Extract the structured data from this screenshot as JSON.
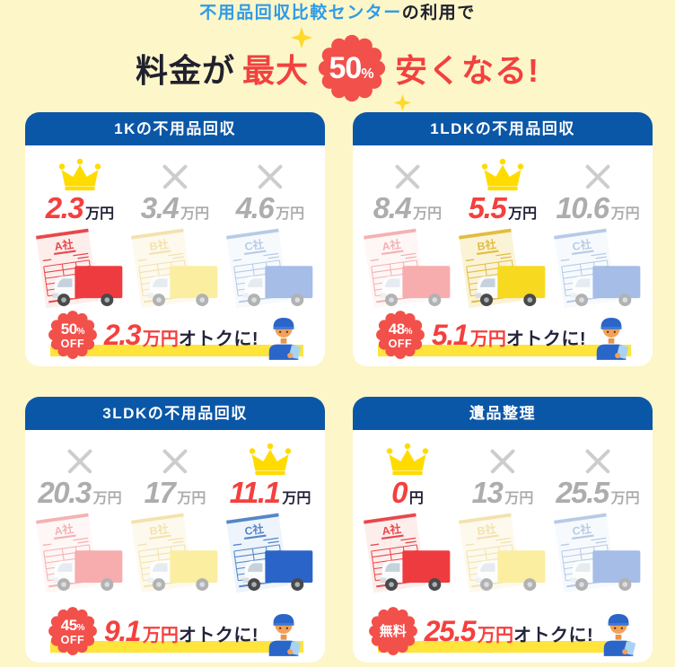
{
  "header": {
    "title_highlight": "不用品回収比較センター",
    "title_rest": "の利用で",
    "price_prefix": "料金が",
    "price_max": "最大",
    "badge_value": "50",
    "badge_unit": "%",
    "price_suffix": "安くなる!"
  },
  "colors": {
    "background": "#FCF6C9",
    "card_header_blue": "#0B57A7",
    "title_blue": "#2E9BE8",
    "dark_text": "#23233A",
    "accent_red": "#F2504B",
    "price_red": "#F4403E",
    "loser_gray": "#ADADAD",
    "highlight_yellow": "#FFE43B",
    "crown_yellow": "#FFDB00",
    "themes": {
      "red": {
        "ink": "#E8474B",
        "paper": "#FDEEEC",
        "truck": "#EE3B40"
      },
      "yellow": {
        "ink": "#E3BC3F",
        "paper": "#FBF3D6",
        "truck": "#F7D920"
      },
      "blue": {
        "ink": "#5586C6",
        "paper": "#EDF4FB",
        "truck": "#2B64C8"
      }
    }
  },
  "cards": [
    {
      "title": "1Kの不用品回収",
      "columns": [
        {
          "company": "A社",
          "theme": "red",
          "winner": true,
          "price_value": "2.3",
          "price_unit": "万円"
        },
        {
          "company": "B社",
          "theme": "yellow",
          "winner": false,
          "price_value": "3.4",
          "price_unit": "万円"
        },
        {
          "company": "C社",
          "theme": "blue",
          "winner": false,
          "price_value": "4.6",
          "price_unit": "万円"
        }
      ],
      "savings": {
        "badge_num": "50",
        "badge_pct": "%",
        "badge_sub": "OFF",
        "value": "2.3",
        "unit": "万円",
        "suffix": "オトクに!"
      }
    },
    {
      "title": "1LDKの不用品回収",
      "columns": [
        {
          "company": "A社",
          "theme": "red",
          "winner": false,
          "price_value": "8.4",
          "price_unit": "万円"
        },
        {
          "company": "B社",
          "theme": "yellow",
          "winner": true,
          "price_value": "5.5",
          "price_unit": "万円"
        },
        {
          "company": "C社",
          "theme": "blue",
          "winner": false,
          "price_value": "10.6",
          "price_unit": "万円"
        }
      ],
      "savings": {
        "badge_num": "48",
        "badge_pct": "%",
        "badge_sub": "OFF",
        "value": "5.1",
        "unit": "万円",
        "suffix": "オトクに!"
      }
    },
    {
      "title": "3LDKの不用品回収",
      "columns": [
        {
          "company": "A社",
          "theme": "red",
          "winner": false,
          "price_value": "20.3",
          "price_unit": "万円"
        },
        {
          "company": "B社",
          "theme": "yellow",
          "winner": false,
          "price_value": "17",
          "price_unit": "万円"
        },
        {
          "company": "C社",
          "theme": "blue",
          "winner": true,
          "price_value": "11.1",
          "price_unit": "万円"
        }
      ],
      "savings": {
        "badge_num": "45",
        "badge_pct": "%",
        "badge_sub": "OFF",
        "value": "9.1",
        "unit": "万円",
        "suffix": "オトクに!"
      }
    },
    {
      "title": "遺品整理",
      "columns": [
        {
          "company": "A社",
          "theme": "red",
          "winner": true,
          "price_value": "0",
          "price_unit": "円"
        },
        {
          "company": "B社",
          "theme": "yellow",
          "winner": false,
          "price_value": "13",
          "price_unit": "万円"
        },
        {
          "company": "C社",
          "theme": "blue",
          "winner": false,
          "price_value": "25.5",
          "price_unit": "万円"
        }
      ],
      "savings": {
        "badge_num": "無料",
        "badge_pct": "",
        "badge_sub": "",
        "value": "25.5",
        "unit": "万円",
        "suffix": "オトクに!"
      }
    }
  ]
}
